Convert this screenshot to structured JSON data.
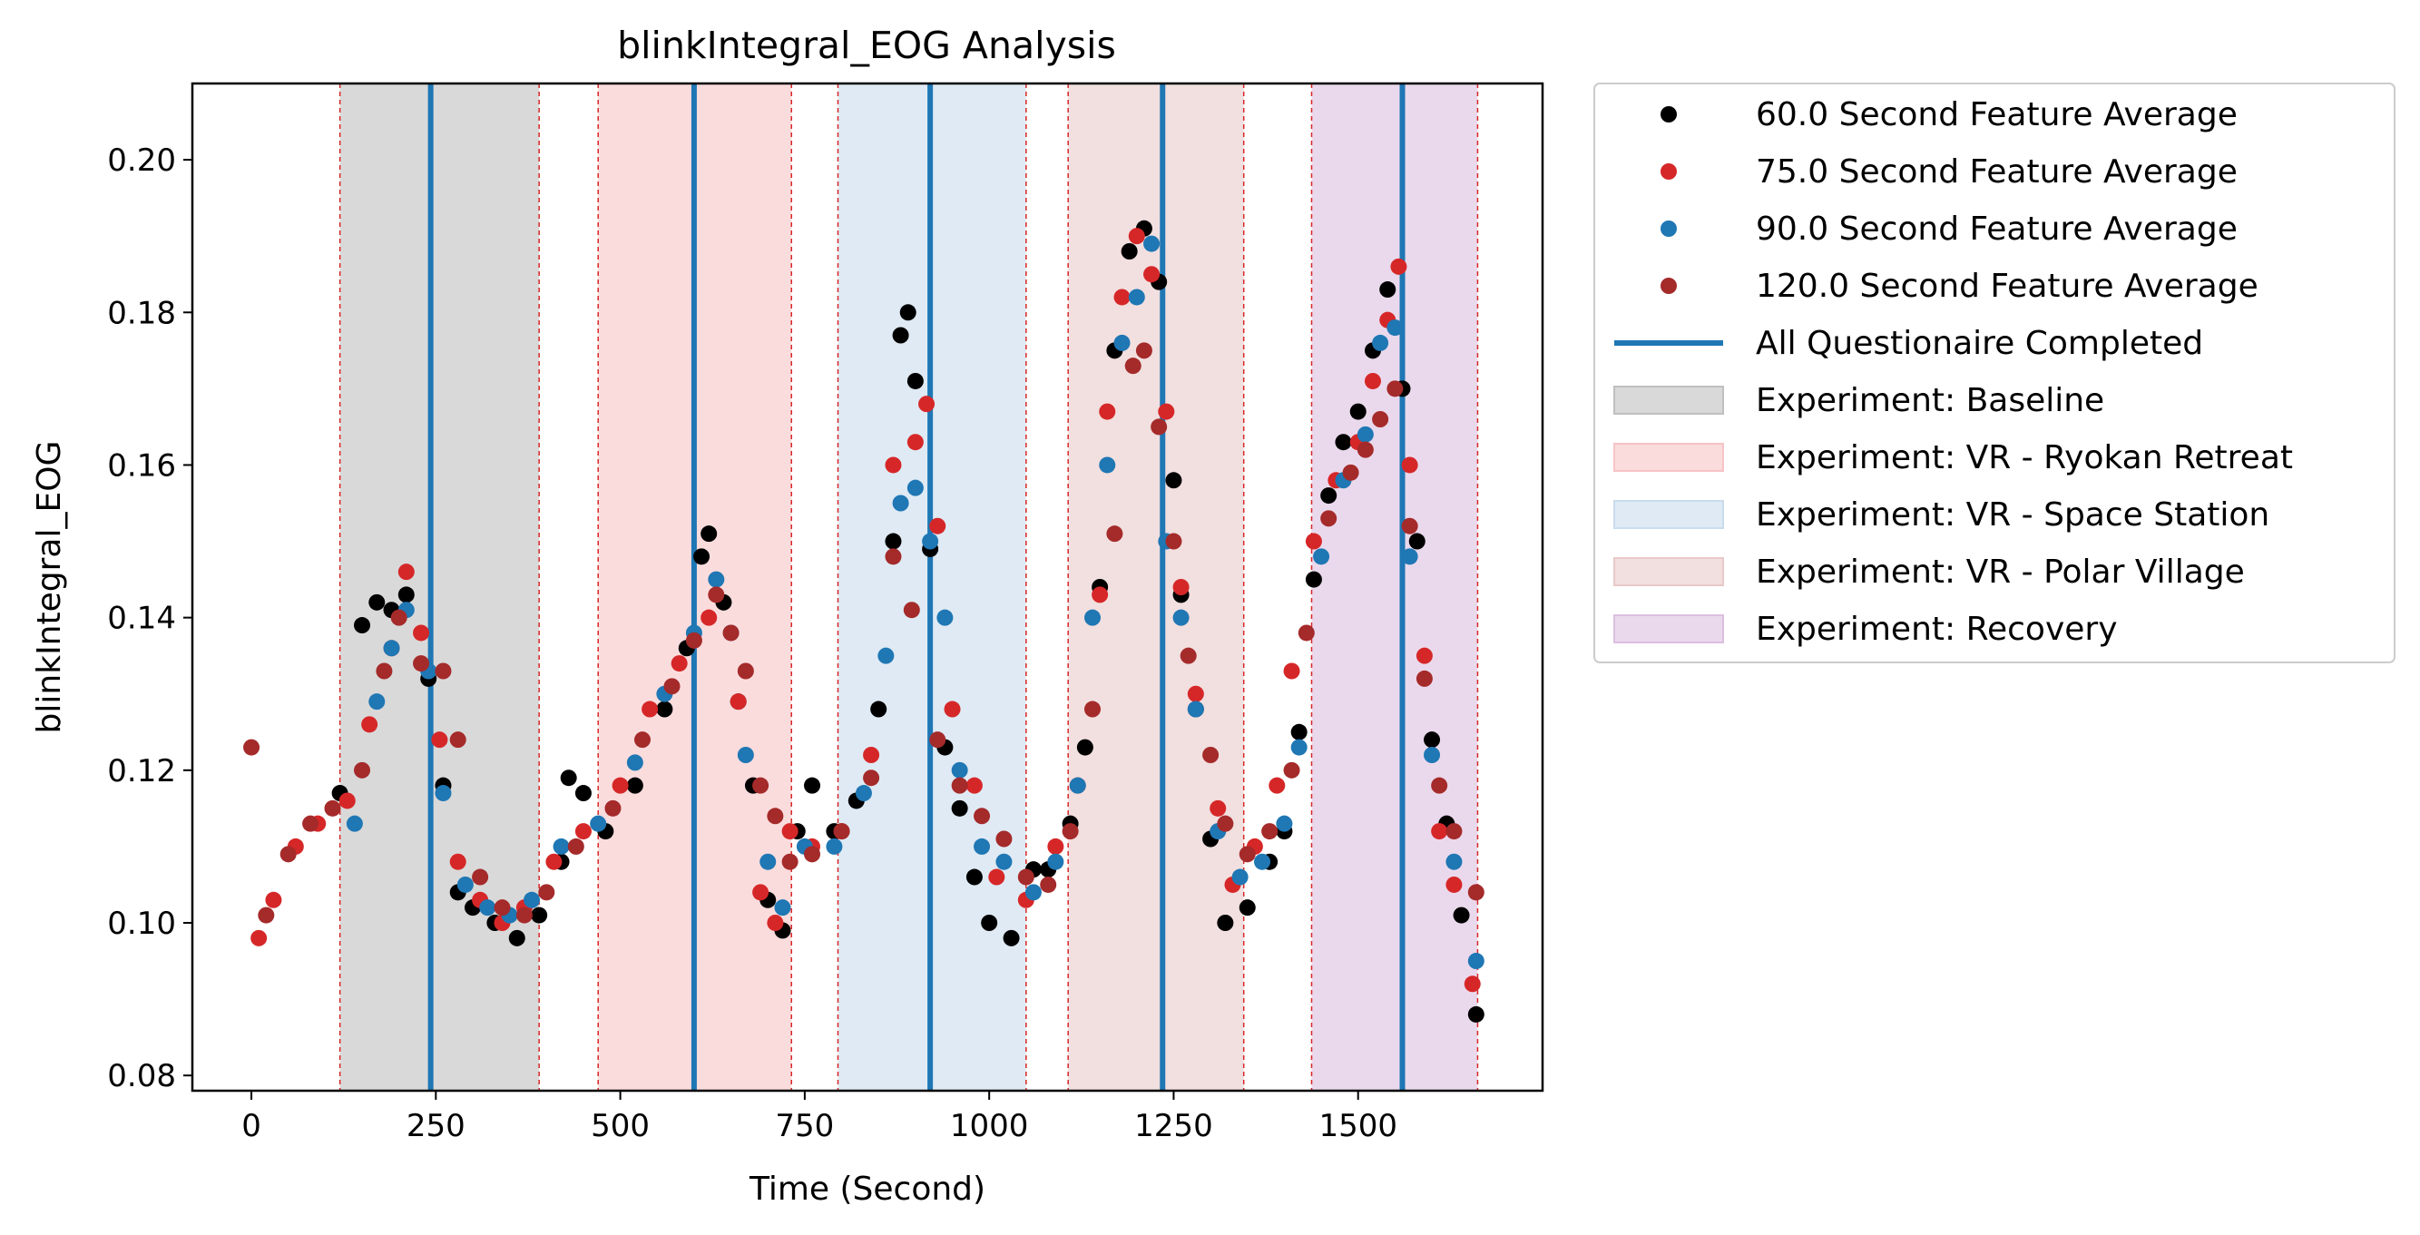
{
  "chart_data": {
    "type": "scatter",
    "title": "blinkIntegral_EOG Analysis",
    "xlabel": "Time (Second)",
    "ylabel": "blinkIntegral_EOG",
    "xlim": [
      -80,
      1750
    ],
    "ylim": [
      0.078,
      0.21
    ],
    "xticks": [
      0,
      250,
      500,
      750,
      1000,
      1250,
      1500
    ],
    "yticks": [
      0.08,
      0.1,
      0.12,
      0.14,
      0.16,
      0.18,
      0.2
    ],
    "xtick_labels": [
      "0",
      "250",
      "500",
      "750",
      "1000",
      "1250",
      "1500"
    ],
    "ytick_labels": [
      "0.08",
      "0.10",
      "0.12",
      "0.14",
      "0.16",
      "0.18",
      "0.20"
    ],
    "grid": false,
    "legend_position": "outside-right",
    "series": [
      {
        "name": "60.0 Second Feature Average",
        "color": "#000000",
        "points": [
          [
            120,
            0.117
          ],
          [
            150,
            0.139
          ],
          [
            170,
            0.142
          ],
          [
            190,
            0.141
          ],
          [
            210,
            0.143
          ],
          [
            240,
            0.132
          ],
          [
            260,
            0.118
          ],
          [
            280,
            0.104
          ],
          [
            300,
            0.102
          ],
          [
            330,
            0.1
          ],
          [
            360,
            0.098
          ],
          [
            390,
            0.101
          ],
          [
            420,
            0.108
          ],
          [
            430,
            0.119
          ],
          [
            450,
            0.117
          ],
          [
            480,
            0.112
          ],
          [
            520,
            0.118
          ],
          [
            560,
            0.128
          ],
          [
            590,
            0.136
          ],
          [
            610,
            0.148
          ],
          [
            620,
            0.151
          ],
          [
            640,
            0.142
          ],
          [
            660,
            0.129
          ],
          [
            680,
            0.118
          ],
          [
            700,
            0.103
          ],
          [
            720,
            0.099
          ],
          [
            740,
            0.112
          ],
          [
            760,
            0.118
          ],
          [
            790,
            0.112
          ],
          [
            820,
            0.116
          ],
          [
            850,
            0.128
          ],
          [
            870,
            0.15
          ],
          [
            880,
            0.177
          ],
          [
            890,
            0.18
          ],
          [
            900,
            0.171
          ],
          [
            920,
            0.149
          ],
          [
            940,
            0.123
          ],
          [
            960,
            0.115
          ],
          [
            980,
            0.106
          ],
          [
            1000,
            0.1
          ],
          [
            1030,
            0.098
          ],
          [
            1060,
            0.107
          ],
          [
            1080,
            0.107
          ],
          [
            1110,
            0.113
          ],
          [
            1130,
            0.123
          ],
          [
            1150,
            0.144
          ],
          [
            1170,
            0.175
          ],
          [
            1190,
            0.188
          ],
          [
            1210,
            0.191
          ],
          [
            1230,
            0.184
          ],
          [
            1250,
            0.158
          ],
          [
            1260,
            0.143
          ],
          [
            1280,
            0.128
          ],
          [
            1300,
            0.111
          ],
          [
            1320,
            0.1
          ],
          [
            1350,
            0.102
          ],
          [
            1380,
            0.108
          ],
          [
            1400,
            0.112
          ],
          [
            1420,
            0.125
          ],
          [
            1440,
            0.145
          ],
          [
            1460,
            0.156
          ],
          [
            1480,
            0.163
          ],
          [
            1500,
            0.167
          ],
          [
            1520,
            0.175
          ],
          [
            1540,
            0.183
          ],
          [
            1560,
            0.17
          ],
          [
            1580,
            0.15
          ],
          [
            1600,
            0.124
          ],
          [
            1620,
            0.113
          ],
          [
            1640,
            0.101
          ],
          [
            1660,
            0.088
          ]
        ]
      },
      {
        "name": "75.0 Second Feature Average",
        "color": "#d62728",
        "points": [
          [
            10,
            0.098
          ],
          [
            30,
            0.103
          ],
          [
            60,
            0.11
          ],
          [
            90,
            0.113
          ],
          [
            130,
            0.116
          ],
          [
            160,
            0.126
          ],
          [
            190,
            0.136
          ],
          [
            210,
            0.146
          ],
          [
            230,
            0.138
          ],
          [
            255,
            0.124
          ],
          [
            280,
            0.108
          ],
          [
            310,
            0.103
          ],
          [
            340,
            0.1
          ],
          [
            370,
            0.102
          ],
          [
            410,
            0.108
          ],
          [
            450,
            0.112
          ],
          [
            500,
            0.118
          ],
          [
            540,
            0.128
          ],
          [
            580,
            0.134
          ],
          [
            620,
            0.14
          ],
          [
            660,
            0.129
          ],
          [
            690,
            0.104
          ],
          [
            710,
            0.1
          ],
          [
            730,
            0.112
          ],
          [
            760,
            0.11
          ],
          [
            800,
            0.112
          ],
          [
            840,
            0.122
          ],
          [
            870,
            0.16
          ],
          [
            900,
            0.163
          ],
          [
            915,
            0.168
          ],
          [
            930,
            0.152
          ],
          [
            950,
            0.128
          ],
          [
            980,
            0.118
          ],
          [
            1010,
            0.106
          ],
          [
            1050,
            0.103
          ],
          [
            1090,
            0.11
          ],
          [
            1120,
            0.118
          ],
          [
            1150,
            0.143
          ],
          [
            1160,
            0.167
          ],
          [
            1180,
            0.182
          ],
          [
            1200,
            0.19
          ],
          [
            1220,
            0.185
          ],
          [
            1240,
            0.167
          ],
          [
            1260,
            0.144
          ],
          [
            1280,
            0.13
          ],
          [
            1310,
            0.115
          ],
          [
            1330,
            0.105
          ],
          [
            1360,
            0.11
          ],
          [
            1390,
            0.118
          ],
          [
            1410,
            0.133
          ],
          [
            1440,
            0.15
          ],
          [
            1470,
            0.158
          ],
          [
            1500,
            0.163
          ],
          [
            1520,
            0.171
          ],
          [
            1540,
            0.179
          ],
          [
            1555,
            0.186
          ],
          [
            1570,
            0.16
          ],
          [
            1590,
            0.135
          ],
          [
            1610,
            0.112
          ],
          [
            1630,
            0.105
          ],
          [
            1655,
            0.092
          ]
        ]
      },
      {
        "name": "90.0 Second Feature Average",
        "color": "#1f77b4",
        "points": [
          [
            140,
            0.113
          ],
          [
            170,
            0.129
          ],
          [
            190,
            0.136
          ],
          [
            210,
            0.141
          ],
          [
            240,
            0.133
          ],
          [
            260,
            0.117
          ],
          [
            290,
            0.105
          ],
          [
            320,
            0.102
          ],
          [
            350,
            0.101
          ],
          [
            380,
            0.103
          ],
          [
            420,
            0.11
          ],
          [
            470,
            0.113
          ],
          [
            520,
            0.121
          ],
          [
            560,
            0.13
          ],
          [
            600,
            0.138
          ],
          [
            630,
            0.145
          ],
          [
            650,
            0.138
          ],
          [
            670,
            0.122
          ],
          [
            700,
            0.108
          ],
          [
            720,
            0.102
          ],
          [
            750,
            0.11
          ],
          [
            790,
            0.11
          ],
          [
            830,
            0.117
          ],
          [
            860,
            0.135
          ],
          [
            880,
            0.155
          ],
          [
            900,
            0.157
          ],
          [
            920,
            0.15
          ],
          [
            940,
            0.14
          ],
          [
            960,
            0.12
          ],
          [
            990,
            0.11
          ],
          [
            1020,
            0.108
          ],
          [
            1060,
            0.104
          ],
          [
            1090,
            0.108
          ],
          [
            1120,
            0.118
          ],
          [
            1140,
            0.14
          ],
          [
            1160,
            0.16
          ],
          [
            1180,
            0.176
          ],
          [
            1200,
            0.182
          ],
          [
            1220,
            0.189
          ],
          [
            1240,
            0.15
          ],
          [
            1260,
            0.14
          ],
          [
            1280,
            0.128
          ],
          [
            1310,
            0.112
          ],
          [
            1340,
            0.106
          ],
          [
            1370,
            0.108
          ],
          [
            1400,
            0.113
          ],
          [
            1420,
            0.123
          ],
          [
            1450,
            0.148
          ],
          [
            1480,
            0.158
          ],
          [
            1510,
            0.164
          ],
          [
            1530,
            0.176
          ],
          [
            1550,
            0.178
          ],
          [
            1570,
            0.148
          ],
          [
            1600,
            0.122
          ],
          [
            1630,
            0.108
          ],
          [
            1660,
            0.095
          ]
        ]
      },
      {
        "name": "120.0 Second Feature Average",
        "color": "#a52a2a",
        "points": [
          [
            0,
            0.123
          ],
          [
            20,
            0.101
          ],
          [
            50,
            0.109
          ],
          [
            80,
            0.113
          ],
          [
            110,
            0.115
          ],
          [
            150,
            0.12
          ],
          [
            180,
            0.133
          ],
          [
            200,
            0.14
          ],
          [
            230,
            0.134
          ],
          [
            260,
            0.133
          ],
          [
            280,
            0.124
          ],
          [
            310,
            0.106
          ],
          [
            340,
            0.102
          ],
          [
            370,
            0.101
          ],
          [
            400,
            0.104
          ],
          [
            440,
            0.11
          ],
          [
            490,
            0.115
          ],
          [
            530,
            0.124
          ],
          [
            570,
            0.131
          ],
          [
            600,
            0.137
          ],
          [
            630,
            0.143
          ],
          [
            650,
            0.138
          ],
          [
            670,
            0.133
          ],
          [
            690,
            0.118
          ],
          [
            710,
            0.114
          ],
          [
            730,
            0.108
          ],
          [
            760,
            0.109
          ],
          [
            800,
            0.112
          ],
          [
            840,
            0.119
          ],
          [
            870,
            0.148
          ],
          [
            895,
            0.141
          ],
          [
            930,
            0.124
          ],
          [
            960,
            0.118
          ],
          [
            990,
            0.114
          ],
          [
            1020,
            0.111
          ],
          [
            1050,
            0.106
          ],
          [
            1080,
            0.105
          ],
          [
            1110,
            0.112
          ],
          [
            1140,
            0.128
          ],
          [
            1170,
            0.151
          ],
          [
            1195,
            0.173
          ],
          [
            1210,
            0.175
          ],
          [
            1230,
            0.165
          ],
          [
            1250,
            0.15
          ],
          [
            1270,
            0.135
          ],
          [
            1300,
            0.122
          ],
          [
            1320,
            0.113
          ],
          [
            1350,
            0.109
          ],
          [
            1380,
            0.112
          ],
          [
            1410,
            0.12
          ],
          [
            1430,
            0.138
          ],
          [
            1460,
            0.153
          ],
          [
            1490,
            0.159
          ],
          [
            1510,
            0.162
          ],
          [
            1530,
            0.166
          ],
          [
            1550,
            0.17
          ],
          [
            1570,
            0.152
          ],
          [
            1590,
            0.132
          ],
          [
            1610,
            0.118
          ],
          [
            1630,
            0.112
          ],
          [
            1660,
            0.104
          ]
        ]
      }
    ],
    "questionnaire_line": {
      "name": "All Questionaire Completed",
      "color": "#1f77b4",
      "x": [
        243,
        600,
        920,
        1235,
        1560
      ]
    },
    "regions": [
      {
        "name": "Experiment: Baseline",
        "x0": 120,
        "x1": 390,
        "color": "#bfbfbf"
      },
      {
        "name": "Experiment: VR - Ryokan Retreat",
        "x0": 470,
        "x1": 732,
        "color": "#f6c4c6"
      },
      {
        "name": "Experiment: VR - Space Station",
        "x0": 795,
        "x1": 1050,
        "color": "#c9dced"
      },
      {
        "name": "Experiment: VR - Polar Village",
        "x0": 1107,
        "x1": 1345,
        "color": "#e9c9c9"
      },
      {
        "name": "Experiment: Recovery",
        "x0": 1437,
        "x1": 1662,
        "color": "#dcbfe0"
      }
    ]
  }
}
